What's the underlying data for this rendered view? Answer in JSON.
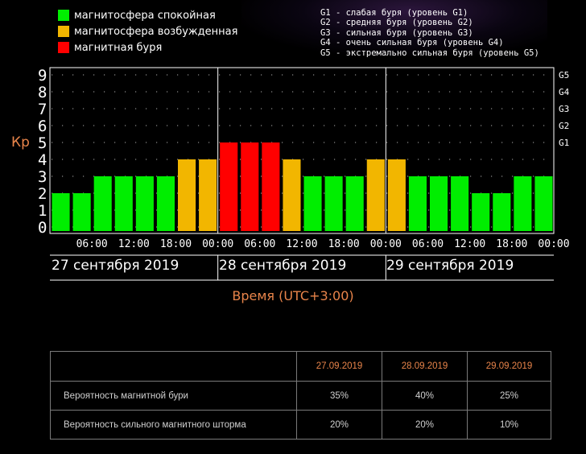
{
  "legend": [
    {
      "label": "магнитосфера спокойная",
      "color": "#00ee00"
    },
    {
      "label": "магнитосфера возбужденная",
      "color": "#f2b600"
    },
    {
      "label": "магнитная буря",
      "color": "#ff0000"
    }
  ],
  "g_legend": [
    "G1 - слабая буря (уровень G1)",
    "G2 - средняя буря (уровень G2)",
    "G3 - сильная буря (уровень G3)",
    "G4 - очень сильная буря (уровень G4)",
    "G5 - экстремально сильная буря (уровень G5)"
  ],
  "y_axis_label": "Кр",
  "x_axis_label": "Время (UTC+3:00)",
  "dates": [
    "27 сентября 2019",
    "28 сентября 2019",
    "29 сентября 2019"
  ],
  "chart_data": {
    "type": "bar",
    "ylabel": "Кр",
    "xlabel": "Время (UTC+3:00)",
    "ylim": [
      0,
      9
    ],
    "y_ticks": [
      "0",
      "1",
      "2",
      "3",
      "4",
      "5",
      "6",
      "7",
      "8",
      "9"
    ],
    "right_ticks": [
      {
        "label": "G1",
        "kp": 5
      },
      {
        "label": "G2",
        "kp": 6
      },
      {
        "label": "G3",
        "kp": 7
      },
      {
        "label": "G4",
        "kp": 8
      },
      {
        "label": "G5",
        "kp": 9
      }
    ],
    "x_tick_labels": [
      "06:00",
      "12:00",
      "18:00",
      "00:00",
      "06:00",
      "12:00",
      "18:00",
      "00:00",
      "06:00",
      "12:00",
      "18:00",
      "00:00"
    ],
    "values": [
      2,
      2,
      3,
      3,
      3,
      3,
      4,
      4,
      5,
      5,
      5,
      4,
      3,
      3,
      3,
      4,
      4,
      3,
      3,
      3,
      2,
      2,
      3,
      3
    ],
    "levels": [
      "quiet",
      "quiet",
      "quiet",
      "quiet",
      "quiet",
      "quiet",
      "excited",
      "excited",
      "storm",
      "storm",
      "storm",
      "excited",
      "quiet",
      "quiet",
      "quiet",
      "excited",
      "excited",
      "quiet",
      "quiet",
      "quiet",
      "quiet",
      "quiet",
      "quiet",
      "quiet"
    ],
    "colors": {
      "quiet": "#00ee00",
      "excited": "#f2b600",
      "storm": "#ff0000"
    },
    "grid": true
  },
  "table": {
    "headers": [
      "27.09.2019",
      "28.09.2019",
      "29.09.2019"
    ],
    "rows": [
      {
        "label": "Вероятность магнитной бури",
        "values": [
          "35%",
          "40%",
          "25%"
        ]
      },
      {
        "label": "Вероятность сильного магнитного шторма",
        "values": [
          "20%",
          "20%",
          "10%"
        ]
      }
    ]
  }
}
